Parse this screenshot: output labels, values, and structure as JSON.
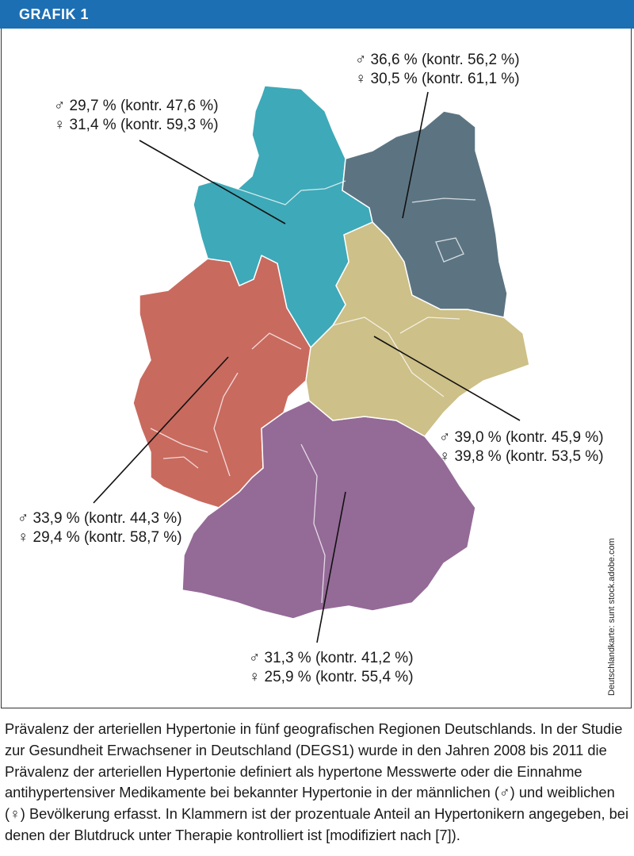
{
  "header": {
    "title": "GRAFIK 1"
  },
  "regions": [
    {
      "name_id": "nord",
      "color": "#3ea9b8",
      "male": "♂ 29,7 % (kontr. 47,6 %)",
      "female": "♀ 31,4 % (kontr. 59,3 %)"
    },
    {
      "name_id": "nordost",
      "color": "#5c7482",
      "male": "♂ 36,6 % (kontr. 56,2 %)",
      "female": "♀ 30,5 % (kontr. 61,1 %)"
    },
    {
      "name_id": "ost",
      "color": "#cdc088",
      "male": "♂ 39,0 % (kontr. 45,9 %)",
      "female": "♀ 39,8 % (kontr. 53,5 %)"
    },
    {
      "name_id": "west",
      "color": "#c96a5f",
      "male": "♂ 33,9 % (kontr. 44,3 %)",
      "female": "♀ 29,4 % (kontr. 58,7 %)"
    },
    {
      "name_id": "sued",
      "color": "#946a97",
      "male": "♂ 31,3 % (kontr. 41,2 %)",
      "female": "♀ 25,9 % (kontr. 55,4 %)"
    }
  ],
  "credit": "Deutschlandkarte: sunt stock.adobe.com",
  "caption": "Prävalenz der arteriellen Hypertonie in fünf geografischen Regionen Deutschlands. In der Studie zur Gesundheit Erwachsener in Deutschland (DEGS1) wurde in den Jahren 2008 bis 2011 die Prävalenz der arteriellen Hypertonie definiert als hypertone Messwerte oder die Einnahme antihypertensiver Medikamente bei bekannter Hypertonie in der männlichen (♂) und weiblichen (♀) Bevölkerung erfasst. In Klammern ist der prozentuale Anteil an Hypertonikern angegeben, bei denen der Blutdruck unter Therapie kontrolliert ist [modifiziert nach [7])."
}
